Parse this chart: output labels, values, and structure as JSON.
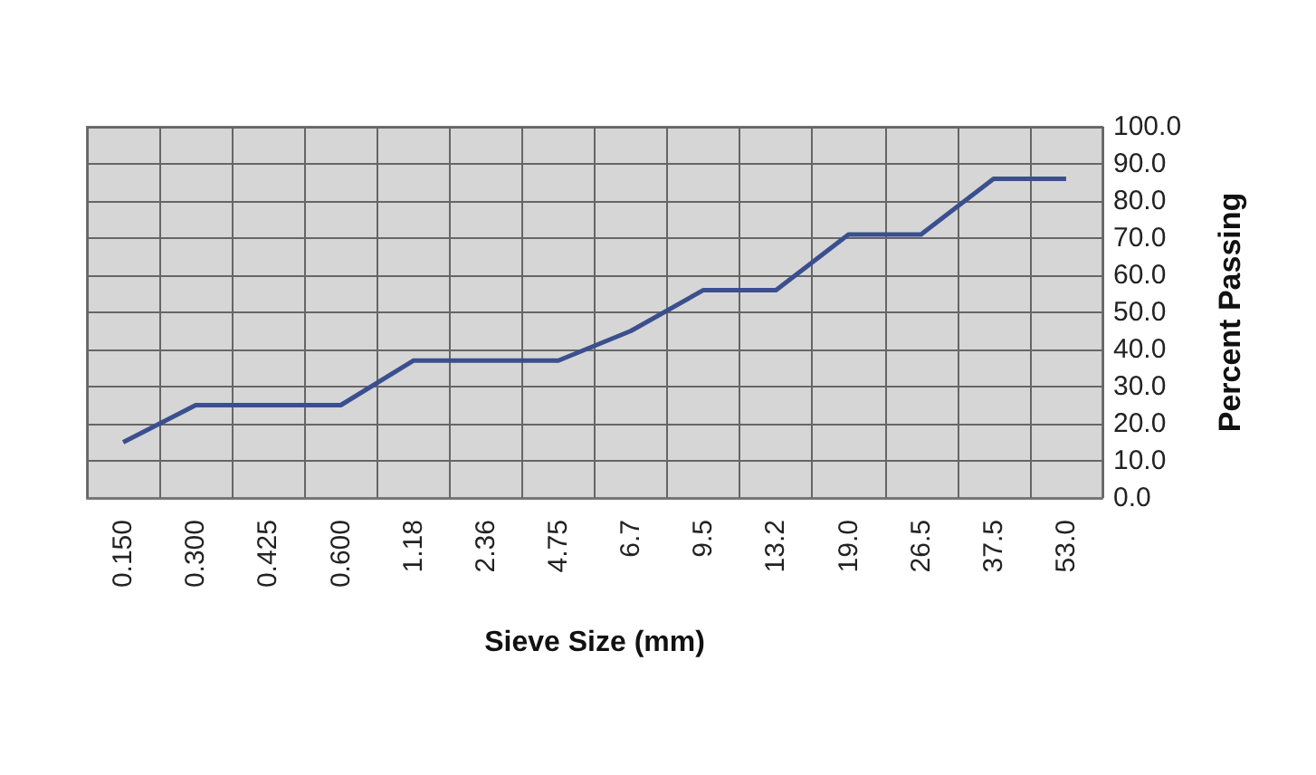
{
  "chart_data": {
    "type": "line",
    "xlabel": "Sieve Size (mm)",
    "ylabel": "Percent Passing",
    "categories": [
      "0.150",
      "0.300",
      "0.425",
      "0.600",
      "1.18",
      "2.36",
      "4.75",
      "6.7",
      "9.5",
      "13.2",
      "19.0",
      "26.5",
      "37.5",
      "53.0"
    ],
    "series": [
      {
        "color": "#3b4f8f",
        "values": [
          15,
          25,
          25,
          25,
          37,
          37,
          37,
          45,
          56,
          56,
          71,
          71,
          86,
          86
        ]
      }
    ],
    "ylim": [
      0,
      100
    ],
    "yticks": [
      {
        "value": 0,
        "label": "0.0"
      },
      {
        "value": 10,
        "label": "10.0"
      },
      {
        "value": 20,
        "label": "20.0"
      },
      {
        "value": 30,
        "label": "30.0"
      },
      {
        "value": 40,
        "label": "40.0"
      },
      {
        "value": 50,
        "label": "50.0"
      },
      {
        "value": 60,
        "label": "60.0"
      },
      {
        "value": 70,
        "label": "70.0"
      },
      {
        "value": 80,
        "label": "80.0"
      },
      {
        "value": 90,
        "label": "90.0"
      },
      {
        "value": 100,
        "label": "100.0"
      }
    ],
    "grid": true,
    "marker": "none",
    "line_style": "solid"
  }
}
